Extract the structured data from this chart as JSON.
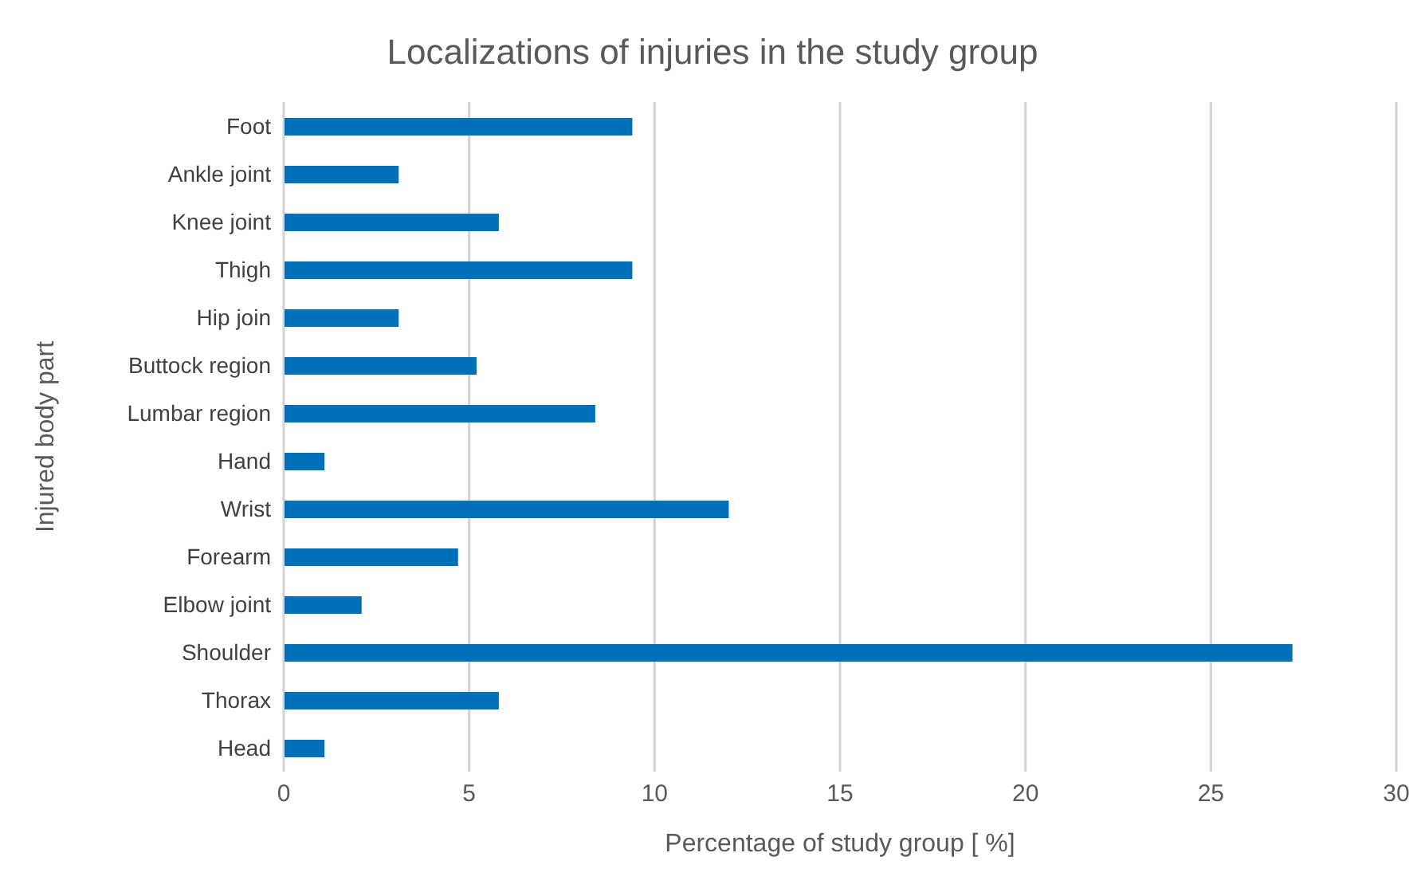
{
  "chart_data": {
    "type": "bar",
    "orientation": "horizontal",
    "title": "Localizations of injuries in the study group",
    "xlabel": "Percentage of study group [ %]",
    "ylabel": "Injured body part",
    "categories": [
      "Foot",
      "Ankle joint",
      "Knee joint",
      "Thigh",
      "Hip join",
      "Buttock region",
      "Lumbar region",
      "Hand",
      "Wrist",
      "Forearm",
      "Elbow joint",
      "Shoulder",
      "Thorax",
      "Head"
    ],
    "values": [
      9.4,
      3.1,
      5.8,
      9.4,
      3.1,
      5.2,
      8.4,
      1.1,
      12.0,
      4.7,
      2.1,
      27.2,
      5.8,
      1.1
    ],
    "color": "#0070b8",
    "xlim": [
      0,
      30
    ],
    "xticks": [
      0,
      5,
      10,
      15,
      20,
      25,
      30
    ],
    "grid": "x"
  }
}
